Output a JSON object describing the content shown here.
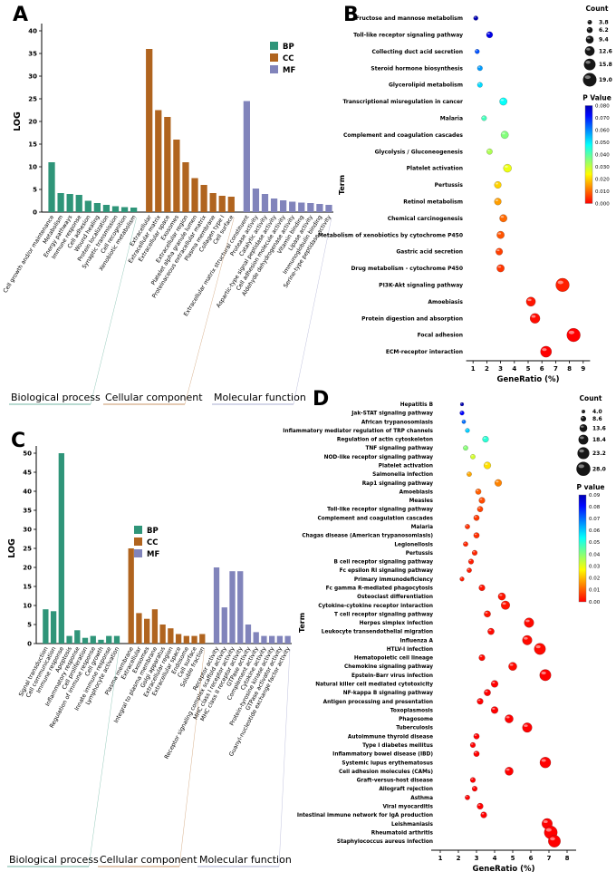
{
  "panels": {
    "a": {
      "label": "A"
    },
    "b": {
      "label": "B"
    },
    "c": {
      "label": "C"
    },
    "d": {
      "label": "D"
    }
  },
  "chart_data": [
    {
      "id": "A",
      "type": "bar",
      "title": "",
      "ylabel": "LOG",
      "ylim": [
        0,
        40
      ],
      "ytick_step": 5,
      "legend": [
        {
          "name": "BP",
          "color": "#2f9579"
        },
        {
          "name": "CC",
          "color": "#b0641f"
        },
        {
          "name": "MF",
          "color": "#8184bb"
        }
      ],
      "groups": [
        {
          "name": "Biological process",
          "color": "#2f9579",
          "bars": [
            {
              "label": "Cell growth and/or maintenance",
              "value": 11
            },
            {
              "label": "Metabolism",
              "value": 4.2
            },
            {
              "label": "Energy pathways",
              "value": 4
            },
            {
              "label": "Immune response",
              "value": 3.8
            },
            {
              "label": "Cell adhesion",
              "value": 2.5
            },
            {
              "label": "Wound healing",
              "value": 2
            },
            {
              "label": "Protein localization",
              "value": 1.6
            },
            {
              "label": "Synaptic transmission",
              "value": 1.3
            },
            {
              "label": "Cell recognition",
              "value": 1.1
            },
            {
              "label": "Xenobiotic metabolism",
              "value": 1
            }
          ]
        },
        {
          "name": "Cellular component",
          "color": "#b0641f",
          "bars": [
            {
              "label": "Extracellular",
              "value": 36
            },
            {
              "label": "Extracellular matrix",
              "value": 22.5
            },
            {
              "label": "Extracellular space",
              "value": 21
            },
            {
              "label": "Exosomes",
              "value": 16
            },
            {
              "label": "Extracellular region",
              "value": 11
            },
            {
              "label": "Platelet alpha granule lumen",
              "value": 7.5
            },
            {
              "label": "Proteinaceous extracellular matrix",
              "value": 6
            },
            {
              "label": "Plasma membrane",
              "value": 4.2
            },
            {
              "label": "Collagen type I",
              "value": 3.6
            },
            {
              "label": "Cell surface",
              "value": 3.4
            }
          ]
        },
        {
          "name": "Molecular function",
          "color": "#8184bb",
          "bars": [
            {
              "label": "Extracellular matrix structural constituent",
              "value": 24.5
            },
            {
              "label": "Protease activity",
              "value": 5.2
            },
            {
              "label": "Catalytic activity",
              "value": 4
            },
            {
              "label": "Aspartic-type signal peptidase activity",
              "value": 3
            },
            {
              "label": "Cell adhesion molecule activity",
              "value": 2.6
            },
            {
              "label": "Aldehyde dehydrogenase activity",
              "value": 2.3
            },
            {
              "label": "Vitamin binding",
              "value": 2.1
            },
            {
              "label": "Lipase activity",
              "value": 2
            },
            {
              "label": "Immunoglobulin binding",
              "value": 1.8
            },
            {
              "label": "Serine-type peptidase activity",
              "value": 1.6
            }
          ]
        }
      ]
    },
    {
      "id": "B",
      "type": "bubble",
      "xlabel": "GeneRatio (%)",
      "ylabel": "Term",
      "xticks": [
        1,
        2,
        3,
        4,
        5,
        6,
        7,
        8,
        9
      ],
      "count_legend": {
        "title": "Count",
        "values": [
          "3.8",
          "6.2",
          "9.4",
          "12.6",
          "15.8",
          "19.0"
        ]
      },
      "pvalue_legend": {
        "title": "P Value",
        "max": 0.08,
        "labels": [
          "0.080",
          "0.070",
          "0.060",
          "0.050",
          "0.040",
          "0.030",
          "0.020",
          "0.010",
          "0.000"
        ]
      },
      "points": [
        {
          "term": "Fructose and mannose metabolism",
          "gene_ratio": 1.2,
          "count": 4,
          "p_value": 0.08
        },
        {
          "term": "Toll-like receptor signaling pathway",
          "gene_ratio": 2.2,
          "count": 7,
          "p_value": 0.075
        },
        {
          "term": "Collecting duct acid secretion",
          "gene_ratio": 1.3,
          "count": 4,
          "p_value": 0.065
        },
        {
          "term": "Steroid hormone biosynthesis",
          "gene_ratio": 1.5,
          "count": 5,
          "p_value": 0.058
        },
        {
          "term": "Glycerolipid metabolism",
          "gene_ratio": 1.5,
          "count": 5,
          "p_value": 0.052
        },
        {
          "term": "Transcriptional misregulation in cancer",
          "gene_ratio": 3.2,
          "count": 9,
          "p_value": 0.048
        },
        {
          "term": "Malaria",
          "gene_ratio": 1.8,
          "count": 5,
          "p_value": 0.042
        },
        {
          "term": "Complement and coagulation cascades",
          "gene_ratio": 3.3,
          "count": 9,
          "p_value": 0.036
        },
        {
          "term": "Glycolysis / Gluconeogenesis",
          "gene_ratio": 2.2,
          "count": 6,
          "p_value": 0.032
        },
        {
          "term": "Platelet activation",
          "gene_ratio": 3.5,
          "count": 10,
          "p_value": 0.026
        },
        {
          "term": "Pertussis",
          "gene_ratio": 2.8,
          "count": 8,
          "p_value": 0.02
        },
        {
          "term": "Retinol metabolism",
          "gene_ratio": 2.8,
          "count": 8,
          "p_value": 0.015
        },
        {
          "term": "Chemical carcinogenesis",
          "gene_ratio": 3.2,
          "count": 9,
          "p_value": 0.01
        },
        {
          "term": "Metabolism of xenobiotics by cytochrome P450",
          "gene_ratio": 3.0,
          "count": 9,
          "p_value": 0.008
        },
        {
          "term": "Gastric acid secretion",
          "gene_ratio": 2.9,
          "count": 8,
          "p_value": 0.006
        },
        {
          "term": "Drug metabolism - cytochrome P450",
          "gene_ratio": 3.0,
          "count": 9,
          "p_value": 0.005
        },
        {
          "term": "PI3K-Akt signaling pathway",
          "gene_ratio": 7.5,
          "count": 19,
          "p_value": 0.003
        },
        {
          "term": "Amoebiasis",
          "gene_ratio": 5.2,
          "count": 12,
          "p_value": 0.002
        },
        {
          "term": "Protein digestion and absorption",
          "gene_ratio": 5.5,
          "count": 13,
          "p_value": 0.001
        },
        {
          "term": "Focal adhesion",
          "gene_ratio": 8.3,
          "count": 19,
          "p_value": 0.0
        },
        {
          "term": "ECM-receptor interaction",
          "gene_ratio": 6.3,
          "count": 15,
          "p_value": 0.0
        }
      ]
    },
    {
      "id": "C",
      "type": "bar",
      "title": "",
      "ylabel": "LOG",
      "ylim": [
        0,
        50
      ],
      "ytick_step": 5,
      "legend": [
        {
          "name": "BP",
          "color": "#2f9579"
        },
        {
          "name": "CC",
          "color": "#b0641f"
        },
        {
          "name": "MF",
          "color": "#8184bb"
        }
      ],
      "groups": [
        {
          "name": "Biological process",
          "color": "#2f9579",
          "bars": [
            {
              "label": "Signal transduction",
              "value": 9
            },
            {
              "label": "Cell communication",
              "value": 8.5
            },
            {
              "label": "Immune response",
              "value": 50
            },
            {
              "label": "Apoptosis",
              "value": 2
            },
            {
              "label": "Inflammatory response",
              "value": 3.5
            },
            {
              "label": "Cell proliferation",
              "value": 1.5
            },
            {
              "label": "Regulation of immune response",
              "value": 2
            },
            {
              "label": "Cell growth",
              "value": 1
            },
            {
              "label": "Innate immune response",
              "value": 2
            },
            {
              "label": "Lymphocyte activation",
              "value": 2
            }
          ]
        },
        {
          "name": "Cellular component",
          "color": "#b0641f",
          "bars": [
            {
              "label": "Plasma membrane",
              "value": 25
            },
            {
              "label": "Extracellular",
              "value": 8
            },
            {
              "label": "Exosomes",
              "value": 6.5
            },
            {
              "label": "Integral to plasma membrane",
              "value": 9
            },
            {
              "label": "Golgi apparatus",
              "value": 5
            },
            {
              "label": "Extracellular region",
              "value": 4
            },
            {
              "label": "Extracellular space",
              "value": 2.5
            },
            {
              "label": "Endosome",
              "value": 2
            },
            {
              "label": "Cell surface",
              "value": 2
            },
            {
              "label": "Soluble fraction",
              "value": 2.5
            }
          ]
        },
        {
          "name": "Molecular function",
          "color": "#8184bb",
          "bars": [
            {
              "label": "Receptor activity",
              "value": 20
            },
            {
              "label": "Receptor signaling complex scaffold activity",
              "value": 9.5
            },
            {
              "label": "MHC class I receptor activity",
              "value": 19
            },
            {
              "label": "MHC class II receptor activity",
              "value": 19
            },
            {
              "label": "GTPase activity",
              "value": 5
            },
            {
              "label": "Complement activity",
              "value": 3
            },
            {
              "label": "Cytokine activity",
              "value": 2
            },
            {
              "label": "Protein-tyrosine kinase activity",
              "value": 2
            },
            {
              "label": "GTPase activator activity",
              "value": 2
            },
            {
              "label": "Guanyl-nucleotide exchange factor activity",
              "value": 2
            }
          ]
        }
      ]
    },
    {
      "id": "D",
      "type": "bubble",
      "xlabel": "GeneRatio (%)",
      "ylabel": "Term",
      "xticks": [
        1,
        2,
        3,
        4,
        5,
        6,
        7,
        8
      ],
      "count_legend": {
        "title": "Count",
        "values": [
          "4.0",
          "8.6",
          "13.6",
          "18.4",
          "23.2",
          "28.0"
        ]
      },
      "pvalue_legend": {
        "title": "P value",
        "max": 0.09,
        "labels": [
          "0.09",
          "0.08",
          "0.07",
          "0.06",
          "0.05",
          "0.04",
          "0.03",
          "0.02",
          "0.01",
          "0.00"
        ]
      },
      "points": [
        {
          "term": "Hepatitis B",
          "gene_ratio": 2.2,
          "count": 4,
          "p_value": 0.09
        },
        {
          "term": "Jak-STAT signaling pathway",
          "gene_ratio": 2.2,
          "count": 6,
          "p_value": 0.082
        },
        {
          "term": "African trypanosomiasis",
          "gene_ratio": 2.3,
          "count": 5,
          "p_value": 0.07
        },
        {
          "term": "Inflammatory mediator regulation of TRP channels",
          "gene_ratio": 2.5,
          "count": 6,
          "p_value": 0.06
        },
        {
          "term": "Regulation of actin cytoskeleton",
          "gene_ratio": 3.5,
          "count": 10,
          "p_value": 0.05
        },
        {
          "term": "TNF signaling pathway",
          "gene_ratio": 2.4,
          "count": 7,
          "p_value": 0.04
        },
        {
          "term": "NOD-like receptor signaling pathway",
          "gene_ratio": 2.8,
          "count": 7,
          "p_value": 0.032
        },
        {
          "term": "Platelet activation",
          "gene_ratio": 3.6,
          "count": 12,
          "p_value": 0.024
        },
        {
          "term": "Salmonella infection",
          "gene_ratio": 2.6,
          "count": 7,
          "p_value": 0.018
        },
        {
          "term": "Rap1 signaling pathway",
          "gene_ratio": 4.2,
          "count": 12,
          "p_value": 0.014
        },
        {
          "term": "Amoebiasis",
          "gene_ratio": 3.1,
          "count": 9,
          "p_value": 0.01
        },
        {
          "term": "Measles",
          "gene_ratio": 3.3,
          "count": 10,
          "p_value": 0.008
        },
        {
          "term": "Toll-like receptor signaling pathway",
          "gene_ratio": 3.2,
          "count": 9,
          "p_value": 0.007
        },
        {
          "term": "Complement and coagulation cascades",
          "gene_ratio": 3.0,
          "count": 9,
          "p_value": 0.006
        },
        {
          "term": "Malaria",
          "gene_ratio": 2.5,
          "count": 7,
          "p_value": 0.005
        },
        {
          "term": "Chagas disease (American trypanosomiasis)",
          "gene_ratio": 3.0,
          "count": 9,
          "p_value": 0.005
        },
        {
          "term": "Legionellosis",
          "gene_ratio": 2.4,
          "count": 7,
          "p_value": 0.004
        },
        {
          "term": "Pertussis",
          "gene_ratio": 2.9,
          "count": 8,
          "p_value": 0.004
        },
        {
          "term": "B cell receptor signaling pathway",
          "gene_ratio": 2.7,
          "count": 8,
          "p_value": 0.003
        },
        {
          "term": "Fc epsilon RI signaling pathway",
          "gene_ratio": 2.6,
          "count": 7,
          "p_value": 0.003
        },
        {
          "term": "Primary immunodeficiency",
          "gene_ratio": 2.2,
          "count": 6,
          "p_value": 0.003
        },
        {
          "term": "Fc gamma R-mediated phagocytosis",
          "gene_ratio": 3.3,
          "count": 10,
          "p_value": 0.002
        },
        {
          "term": "Osteoclast differentiation",
          "gene_ratio": 4.4,
          "count": 13,
          "p_value": 0.002
        },
        {
          "term": "Cytokine-cytokine receptor interaction",
          "gene_ratio": 4.6,
          "count": 16,
          "p_value": 0.002
        },
        {
          "term": "T cell receptor signaling pathway",
          "gene_ratio": 3.6,
          "count": 11,
          "p_value": 0.002
        },
        {
          "term": "Herpes simplex infection",
          "gene_ratio": 5.9,
          "count": 18,
          "p_value": 0.001
        },
        {
          "term": "Leukocyte transendothelial migration",
          "gene_ratio": 3.8,
          "count": 11,
          "p_value": 0.001
        },
        {
          "term": "Influenza A",
          "gene_ratio": 5.8,
          "count": 18,
          "p_value": 0.001
        },
        {
          "term": "HTLV-I infection",
          "gene_ratio": 6.5,
          "count": 22,
          "p_value": 0.001
        },
        {
          "term": "Hematopoietic cell lineage",
          "gene_ratio": 3.3,
          "count": 10,
          "p_value": 0.001
        },
        {
          "term": "Chemokine signaling pathway",
          "gene_ratio": 5.0,
          "count": 15,
          "p_value": 0.001
        },
        {
          "term": "Epstein-Barr virus infection",
          "gene_ratio": 6.8,
          "count": 22,
          "p_value": 0.0
        },
        {
          "term": "Natural killer cell mediated cytotoxicity",
          "gene_ratio": 4.0,
          "count": 12,
          "p_value": 0.0
        },
        {
          "term": "NF-kappa B signaling pathway",
          "gene_ratio": 3.6,
          "count": 11,
          "p_value": 0.0
        },
        {
          "term": "Antigen processing and presentation",
          "gene_ratio": 3.2,
          "count": 10,
          "p_value": 0.0
        },
        {
          "term": "Toxoplasmosis",
          "gene_ratio": 4.0,
          "count": 12,
          "p_value": 0.0
        },
        {
          "term": "Phagosome",
          "gene_ratio": 4.8,
          "count": 15,
          "p_value": 0.0
        },
        {
          "term": "Tuberculosis",
          "gene_ratio": 5.8,
          "count": 18,
          "p_value": 0.0
        },
        {
          "term": "Autoimmune thyroid disease",
          "gene_ratio": 3.0,
          "count": 9,
          "p_value": 0.0
        },
        {
          "term": "Type I diabetes mellitus",
          "gene_ratio": 2.8,
          "count": 8,
          "p_value": 0.0
        },
        {
          "term": "Inflammatory bowel disease (IBD)",
          "gene_ratio": 3.0,
          "count": 9,
          "p_value": 0.0
        },
        {
          "term": "Systemic lupus erythematosus",
          "gene_ratio": 6.8,
          "count": 21,
          "p_value": 0.0
        },
        {
          "term": "Cell adhesion molecules (CAMs)",
          "gene_ratio": 4.8,
          "count": 15,
          "p_value": 0.0
        },
        {
          "term": "Graft-versus-host disease",
          "gene_ratio": 2.8,
          "count": 8,
          "p_value": 0.0
        },
        {
          "term": "Allograft rejection",
          "gene_ratio": 2.9,
          "count": 8,
          "p_value": 0.0
        },
        {
          "term": "Asthma",
          "gene_ratio": 2.5,
          "count": 7,
          "p_value": 0.0
        },
        {
          "term": "Viral myocarditis",
          "gene_ratio": 3.2,
          "count": 10,
          "p_value": 0.0
        },
        {
          "term": "Intestinal immune network for IgA production",
          "gene_ratio": 3.4,
          "count": 10,
          "p_value": 0.0
        },
        {
          "term": "Leishmaniasis",
          "gene_ratio": 6.9,
          "count": 20,
          "p_value": 0.0
        },
        {
          "term": "Rheumatoid arthritis",
          "gene_ratio": 7.1,
          "count": 26,
          "p_value": 0.0
        },
        {
          "term": "Staphylococcus aureus infection",
          "gene_ratio": 7.3,
          "count": 24,
          "p_value": 0.0
        }
      ]
    }
  ]
}
